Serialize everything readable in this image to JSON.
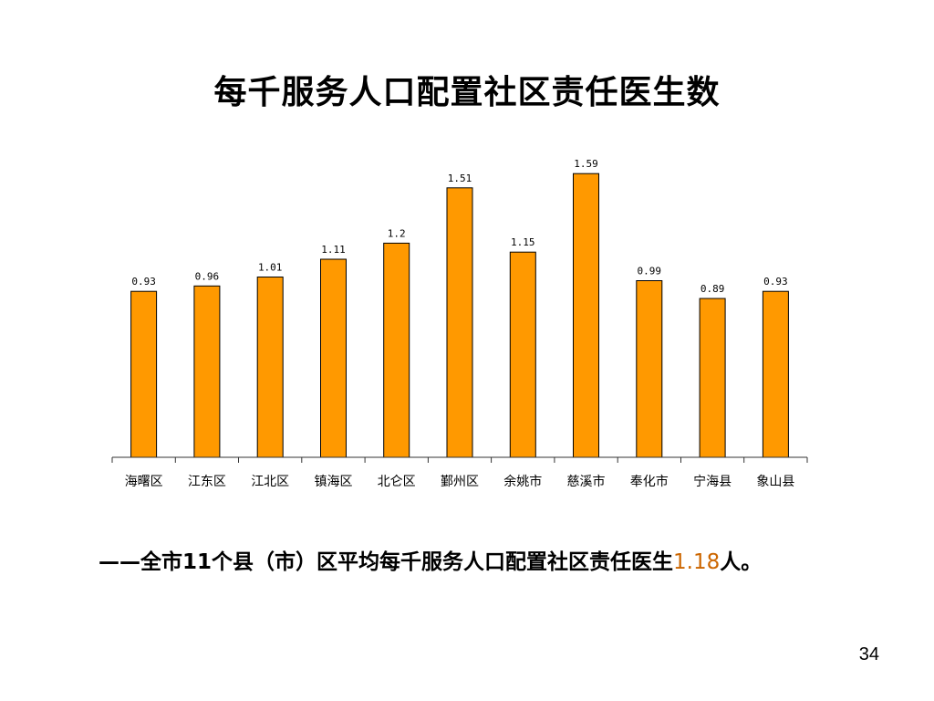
{
  "slide": {
    "title": "每千服务人口配置社区责任医生数",
    "summary_prefix": "——全市11个县（市）区平均每千服务人口配置社区责任医生",
    "summary_value": "1.18",
    "summary_suffix": "人。",
    "page_number": "34"
  },
  "colors": {
    "bar": "#FF9900",
    "highlight": "#CC6600"
  },
  "chart_data": {
    "type": "bar",
    "title": "每千服务人口配置社区责任医生数",
    "categories": [
      "海曙区",
      "江东区",
      "江北区",
      "镇海区",
      "北仑区",
      "鄞州区",
      "余姚市",
      "慈溪市",
      "奉化市",
      "宁海县",
      "象山县"
    ],
    "values": [
      0.93,
      0.96,
      1.01,
      1.11,
      1.2,
      1.51,
      1.15,
      1.59,
      0.99,
      0.89,
      0.93
    ],
    "value_labels": [
      "0.93",
      "0.96",
      "1.01",
      "1.11",
      "1.2",
      "1.51",
      "1.15",
      "1.59",
      "0.99",
      "0.89",
      "0.93"
    ],
    "ylim": [
      0,
      1.8
    ],
    "grid": false,
    "legend": "none"
  }
}
